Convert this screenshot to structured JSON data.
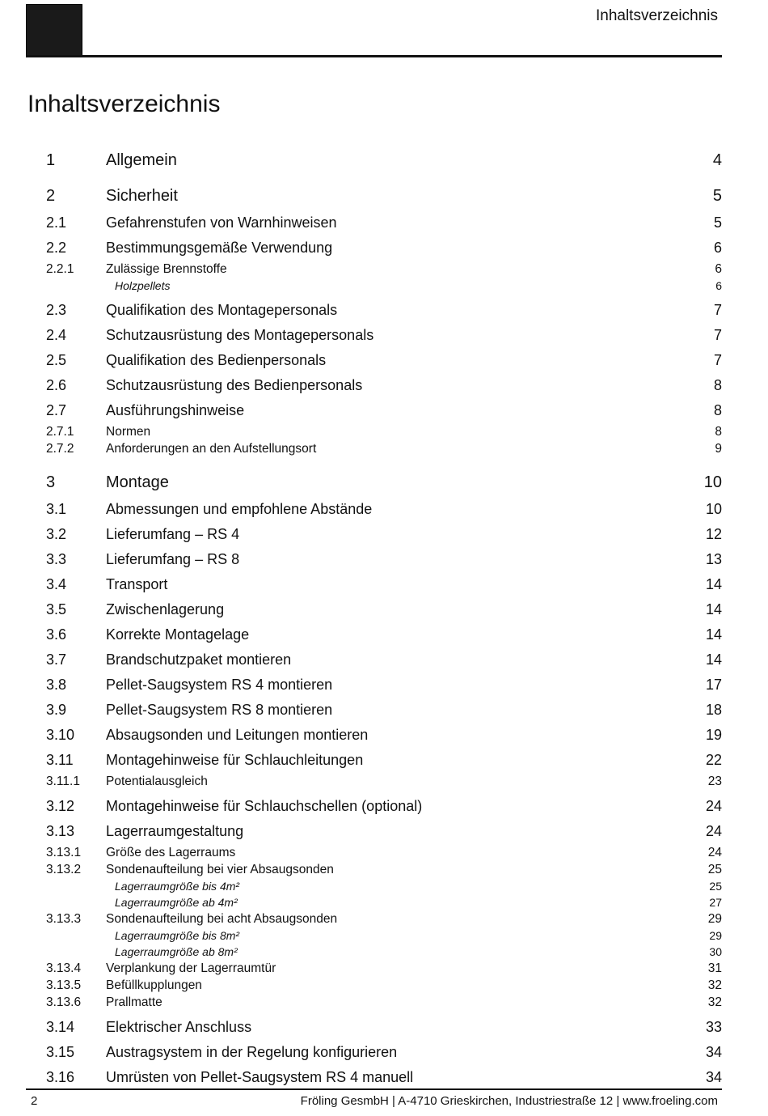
{
  "header": {
    "title": "Inhaltsverzeichnis"
  },
  "title": "Inhaltsverzeichnis",
  "chapters": [
    {
      "number": "1",
      "title": "Allgemein",
      "page": 4,
      "sections": []
    },
    {
      "number": "2",
      "title": "Sicherheit",
      "page": 5,
      "sections": [
        {
          "number": "2.1",
          "title": "Gefahrenstufen von Warnhinweisen",
          "page": 5,
          "subsections": []
        },
        {
          "number": "2.2",
          "title": "Bestimmungsgemäße Verwendung",
          "page": 6,
          "subsections": [
            {
              "number": "2.2.1",
              "title": "Zulässige Brennstoffe",
              "page": 6,
              "items": [
                {
                  "title": "Holzpellets",
                  "page": 6
                }
              ]
            }
          ]
        },
        {
          "number": "2.3",
          "title": "Qualifikation des Montagepersonals",
          "page": 7,
          "subsections": []
        },
        {
          "number": "2.4",
          "title": "Schutzausrüstung des Montagepersonals",
          "page": 7,
          "subsections": []
        },
        {
          "number": "2.5",
          "title": "Qualifikation des Bedienpersonals",
          "page": 7,
          "subsections": []
        },
        {
          "number": "2.6",
          "title": "Schutzausrüstung des Bedienpersonals",
          "page": 8,
          "subsections": []
        },
        {
          "number": "2.7",
          "title": "Ausführungshinweise",
          "page": 8,
          "subsections": [
            {
              "number": "2.7.1",
              "title": "Normen",
              "page": 8,
              "items": []
            },
            {
              "number": "2.7.2",
              "title": "Anforderungen an den Aufstellungsort",
              "page": 9,
              "items": []
            }
          ]
        }
      ]
    },
    {
      "number": "3",
      "title": "Montage",
      "page": 10,
      "sections": [
        {
          "number": "3.1",
          "title": "Abmessungen und empfohlene Abstände",
          "page": 10,
          "subsections": []
        },
        {
          "number": "3.2",
          "title": "Lieferumfang – RS 4",
          "page": 12,
          "subsections": []
        },
        {
          "number": "3.3",
          "title": "Lieferumfang – RS 8",
          "page": 13,
          "subsections": []
        },
        {
          "number": "3.4",
          "title": "Transport",
          "page": 14,
          "subsections": []
        },
        {
          "number": "3.5",
          "title": "Zwischenlagerung",
          "page": 14,
          "subsections": []
        },
        {
          "number": "3.6",
          "title": "Korrekte Montagelage",
          "page": 14,
          "subsections": []
        },
        {
          "number": "3.7",
          "title": "Brandschutzpaket montieren",
          "page": 14,
          "subsections": []
        },
        {
          "number": "3.8",
          "title": "Pellet-Saugsystem RS 4 montieren",
          "page": 17,
          "subsections": []
        },
        {
          "number": "3.9",
          "title": "Pellet-Saugsystem RS 8 montieren",
          "page": 18,
          "subsections": []
        },
        {
          "number": "3.10",
          "title": "Absaugsonden und Leitungen montieren",
          "page": 19,
          "subsections": []
        },
        {
          "number": "3.11",
          "title": "Montagehinweise für Schlauchleitungen",
          "page": 22,
          "subsections": [
            {
              "number": "3.11.1",
              "title": "Potentialausgleich",
              "page": 23,
              "items": []
            }
          ]
        },
        {
          "number": "3.12",
          "title": "Montagehinweise für Schlauchschellen (optional)",
          "page": 24,
          "subsections": []
        },
        {
          "number": "3.13",
          "title": "Lagerraumgestaltung",
          "page": 24,
          "subsections": [
            {
              "number": "3.13.1",
              "title": "Größe des Lagerraums",
              "page": 24,
              "items": []
            },
            {
              "number": "3.13.2",
              "title": "Sondenaufteilung bei vier Absaugsonden",
              "page": 25,
              "items": [
                {
                  "title": "Lagerraumgröße bis 4m²",
                  "page": 25
                },
                {
                  "title": "Lagerraumgröße ab 4m²",
                  "page": 27
                }
              ]
            },
            {
              "number": "3.13.3",
              "title": "Sondenaufteilung bei acht Absaugsonden",
              "page": 29,
              "items": [
                {
                  "title": "Lagerraumgröße bis 8m²",
                  "page": 29
                },
                {
                  "title": "Lagerraumgröße ab 8m²",
                  "page": 30
                }
              ]
            },
            {
              "number": "3.13.4",
              "title": "Verplankung der Lagerraumtür",
              "page": 31,
              "items": []
            },
            {
              "number": "3.13.5",
              "title": "Befüllkupplungen",
              "page": 32,
              "items": []
            },
            {
              "number": "3.13.6",
              "title": "Prallmatte",
              "page": 32,
              "items": []
            }
          ]
        },
        {
          "number": "3.14",
          "title": "Elektrischer Anschluss",
          "page": 33,
          "subsections": []
        },
        {
          "number": "3.15",
          "title": "Austragsystem in der Regelung konfigurieren",
          "page": 34,
          "subsections": []
        },
        {
          "number": "3.16",
          "title": "Umrüsten von Pellet-Saugsystem RS 4 manuell",
          "page": 34,
          "subsections": []
        }
      ]
    }
  ],
  "footer": {
    "page": "2",
    "text": "Fröling GesmbH | A-4710 Grieskirchen, Industriestraße 12 | www.froeling.com"
  }
}
